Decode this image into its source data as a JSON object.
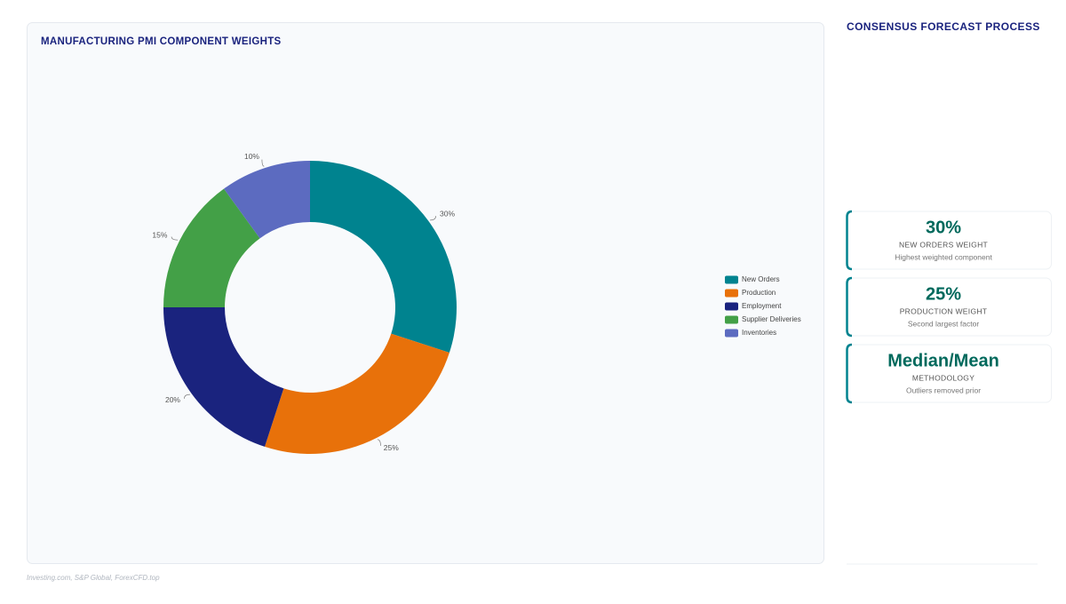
{
  "chart_data": {
    "type": "donut",
    "title": "MANUFACTURING PMI COMPONENT WEIGHTS",
    "categories": [
      "New Orders",
      "Production",
      "Employment",
      "Supplier Deliveries",
      "Inventories"
    ],
    "values": [
      30,
      25,
      20,
      15,
      10
    ],
    "value_labels": [
      "30%",
      "25%",
      "20%",
      "15%",
      "10%"
    ],
    "colors": [
      "#00838f",
      "#e8710a",
      "#1a237e",
      "#43a047",
      "#5c6bc0"
    ],
    "legend": "right"
  },
  "panel": {
    "title": "CONSENSUS FORECAST PROCESS",
    "cards": [
      {
        "value": "30%",
        "label": "NEW ORDERS WEIGHT",
        "note": "Highest weighted component"
      },
      {
        "value": "25%",
        "label": "PRODUCTION WEIGHT",
        "note": "Second largest factor"
      },
      {
        "value": "Median/Mean",
        "label": "METHODOLOGY",
        "note": "Outliers removed prior"
      }
    ]
  },
  "source": "Investing.com, S&P Global, ForexCFD.top"
}
